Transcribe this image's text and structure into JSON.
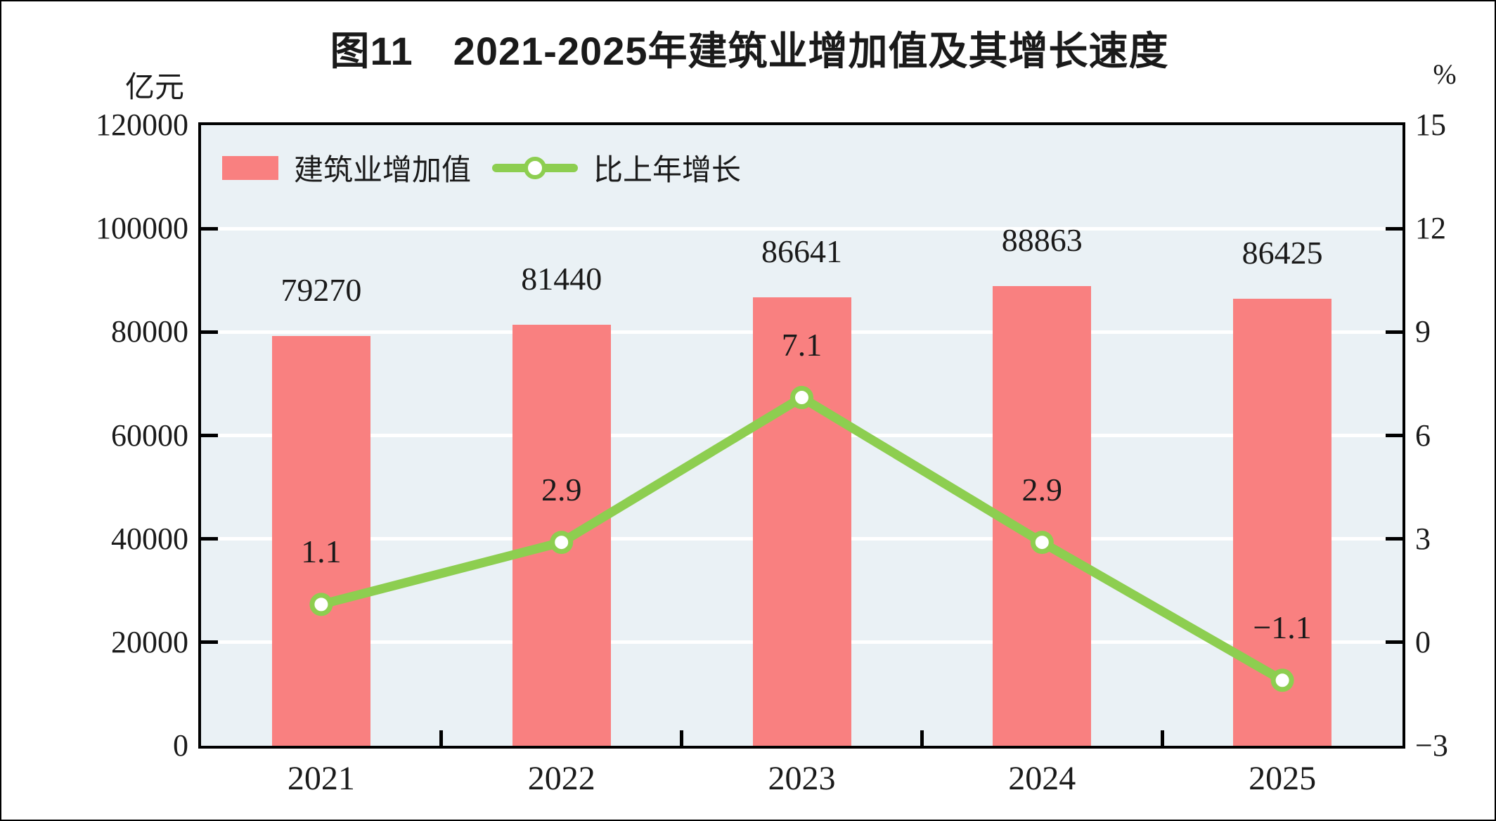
{
  "chart_data": {
    "type": "bar+line combo",
    "title": "图11　2021-2025年建筑业增加值及其增长速度",
    "categories": [
      "2021",
      "2022",
      "2023",
      "2024",
      "2025"
    ],
    "series": [
      {
        "name": "建筑业增加值",
        "type": "bar",
        "axis": "left",
        "unit": "亿元",
        "values": [
          79270,
          81440,
          86641,
          88863,
          86425
        ],
        "color": "#f98080"
      },
      {
        "name": "比上年增长",
        "type": "line",
        "axis": "right",
        "unit": "%",
        "values": [
          1.1,
          2.9,
          7.1,
          2.9,
          -1.1
        ],
        "color": "#8dce50"
      }
    ],
    "value_labels": {
      "bar": [
        "79270",
        "81440",
        "86641",
        "88863",
        "86425"
      ],
      "line": [
        "1.1",
        "2.9",
        "7.1",
        "2.9",
        "−1.1"
      ]
    },
    "left_axis": {
      "label": "亿元",
      "min": 0,
      "max": 120000,
      "step": 20000,
      "ticks": [
        "0",
        "20000",
        "40000",
        "60000",
        "80000",
        "100000",
        "120000"
      ]
    },
    "right_axis": {
      "label": "%",
      "min": -3,
      "max": 15,
      "step": 3,
      "ticks": [
        "−3",
        "0",
        "3",
        "6",
        "9",
        "12",
        "15"
      ]
    },
    "legend": [
      {
        "label": "建筑业增加值",
        "marker": "bar-swatch"
      },
      {
        "label": "比上年增长",
        "marker": "line-dot"
      }
    ],
    "layout": {
      "plot_bg": "#eaf1f5",
      "grid_color": "#ffffff",
      "axis_color": "#000000",
      "grid": "on",
      "legend_position": "top-left-inside",
      "marker_fill": "#ffffff"
    }
  }
}
